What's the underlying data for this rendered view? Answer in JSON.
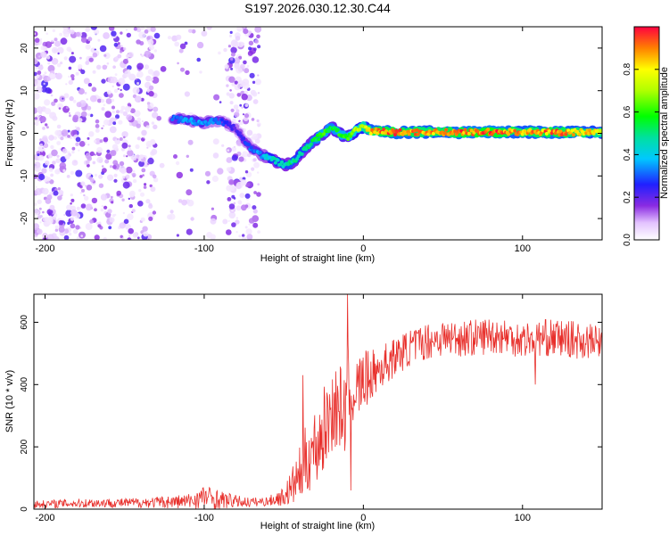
{
  "title": "S197.2026.030.12.30.C44",
  "colors": {
    "snr_line": "#e8302c",
    "axis": "#000000",
    "background": "#ffffff"
  },
  "chart_data": [
    {
      "type": "heatmap",
      "title": "S197.2026.030.12.30.C44",
      "xlabel": "Height of straight line (km)",
      "ylabel": "Frequency (Hz)",
      "xlim": [
        -207,
        150
      ],
      "ylim": [
        -25,
        25
      ],
      "xticks": [
        -200,
        -100,
        0,
        100
      ],
      "xtick_labels": [
        "-200",
        "-100",
        "0",
        "100"
      ],
      "yticks": [
        -20,
        -10,
        0,
        10,
        20
      ],
      "ytick_labels": [
        "-20",
        "-10",
        "0",
        "10",
        "20"
      ],
      "colorbar": {
        "label": "Normalized spectral amplitude",
        "range": [
          0,
          1
        ],
        "ticks": [
          0.0,
          0.2,
          0.4,
          0.6,
          0.8
        ],
        "tick_labels": [
          "0.0",
          "0.2",
          "0.4",
          "0.6",
          "0.8"
        ]
      },
      "ridge": {
        "description_x": [
          -120,
          -110,
          -100,
          -90,
          -80,
          -72,
          -65,
          -60,
          -55,
          -50,
          -45,
          -40,
          -35,
          -30,
          -25,
          -20,
          -15,
          -10,
          -5,
          0,
          5,
          10,
          20,
          40,
          60,
          80,
          100,
          120,
          150
        ],
        "frequency_hz": [
          3.5,
          3,
          2.5,
          3,
          1,
          -3,
          -5,
          -5.5,
          -6.5,
          -7.5,
          -7,
          -5,
          -3,
          -1.5,
          0,
          1.5,
          0,
          -1,
          0.5,
          1.5,
          0.5,
          0.5,
          0.2,
          0.3,
          0.2,
          0.3,
          0.3,
          0.2,
          0.3
        ],
        "amplitude": [
          0.3,
          0.35,
          0.35,
          0.3,
          0.2,
          0.3,
          0.35,
          0.4,
          0.45,
          0.45,
          0.5,
          0.45,
          0.5,
          0.55,
          0.6,
          0.55,
          0.6,
          0.6,
          0.7,
          0.75,
          0.85,
          0.9,
          0.9,
          0.85,
          0.9,
          0.95,
          0.85,
          0.9,
          0.8
        ]
      },
      "noise_region_x": [
        -207,
        -65
      ]
    },
    {
      "type": "line",
      "title": "",
      "xlabel": "Height of straight line (km)",
      "ylabel": "SNR (10 * v/v)",
      "xlim": [
        -207,
        150
      ],
      "ylim": [
        0,
        690
      ],
      "xticks": [
        -200,
        -100,
        0,
        100
      ],
      "xtick_labels": [
        "-200",
        "-100",
        "0",
        "100"
      ],
      "yticks": [
        0,
        200,
        400,
        600
      ],
      "ytick_labels": [
        "0",
        "200",
        "400",
        "600"
      ],
      "series": [
        {
          "name": "SNR",
          "x": [
            -207,
            -190,
            -170,
            -150,
            -130,
            -110,
            -100,
            -90,
            -80,
            -70,
            -60,
            -50,
            -45,
            -40,
            -35,
            -30,
            -25,
            -20,
            -15,
            -12,
            -10,
            -8,
            -5,
            0,
            5,
            10,
            15,
            20,
            30,
            40,
            50,
            60,
            70,
            80,
            90,
            100,
            110,
            120,
            130,
            140,
            150
          ],
          "values": [
            15,
            18,
            20,
            20,
            22,
            25,
            40,
            30,
            25,
            22,
            25,
            40,
            70,
            110,
            170,
            200,
            250,
            320,
            330,
            300,
            380,
            400,
            380,
            410,
            430,
            450,
            470,
            490,
            520,
            540,
            550,
            550,
            550,
            560,
            555,
            545,
            550,
            550,
            545,
            540,
            535
          ],
          "noise_amplitude": [
            12,
            14,
            15,
            15,
            18,
            25,
            40,
            30,
            20,
            15,
            15,
            30,
            60,
            90,
            120,
            130,
            140,
            140,
            140,
            140,
            150,
            120,
            110,
            100,
            80,
            70,
            70,
            60,
            60,
            60,
            60,
            60,
            60,
            60,
            60,
            60,
            60,
            60,
            60,
            60,
            50
          ],
          "spikes": [
            {
              "x": -10,
              "value": 690
            },
            {
              "x": -38,
              "value": 430
            },
            {
              "x": -8,
              "value": 60
            },
            {
              "x": 108,
              "value": 400
            }
          ]
        }
      ]
    }
  ]
}
